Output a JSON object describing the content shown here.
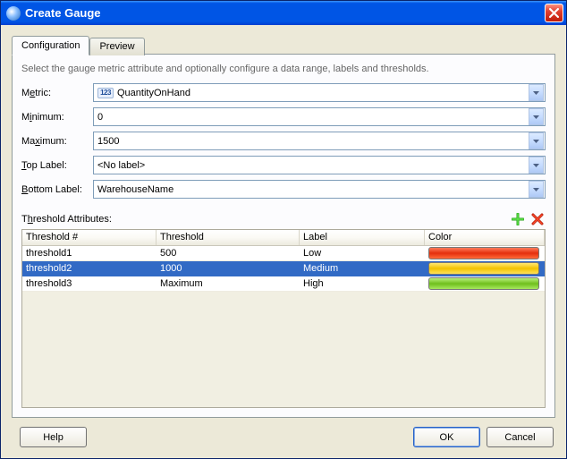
{
  "window": {
    "title": "Create Gauge"
  },
  "tabs": {
    "configuration": "Configuration",
    "preview": "Preview",
    "active": "configuration"
  },
  "hint": "Select the gauge metric attribute and optionally configure a data range, labels and thresholds.",
  "form": {
    "metric": {
      "label_pre": "M",
      "label_ul": "e",
      "label_post": "tric:",
      "badge": "123",
      "value": "QuantityOnHand"
    },
    "minimum": {
      "label_pre": "M",
      "label_ul": "i",
      "label_post": "nimum:",
      "value": "0"
    },
    "maximum": {
      "label_pre": "Ma",
      "label_ul": "x",
      "label_post": "imum:",
      "value": "1500"
    },
    "top_label": {
      "label_pre": "",
      "label_ul": "T",
      "label_post": "op Label:",
      "value": "<No label>"
    },
    "bottom_label": {
      "label_pre": "",
      "label_ul": "B",
      "label_post": "ottom Label:",
      "value": "WarehouseName"
    }
  },
  "thresholds": {
    "section_pre": "T",
    "section_ul": "h",
    "section_post": "reshold Attributes:",
    "columns": {
      "num": "Threshold #",
      "threshold": "Threshold",
      "label": "Label",
      "color": "Color"
    },
    "rows": [
      {
        "num": "threshold1",
        "threshold": "500",
        "label": "Low",
        "color": "red",
        "selected": false
      },
      {
        "num": "threshold2",
        "threshold": "1000",
        "label": "Medium",
        "color": "yellow",
        "selected": true
      },
      {
        "num": "threshold3",
        "threshold": "Maximum",
        "label": "High",
        "color": "green",
        "selected": false
      }
    ],
    "swatch_colors": {
      "red": [
        "#ff7b5a",
        "#e42f0d",
        "#ff6a3a"
      ],
      "yellow": [
        "#ffe873",
        "#f2c200",
        "#ffe25a"
      ],
      "green": [
        "#b9f07a",
        "#6fbf1d",
        "#a7e85e"
      ]
    }
  },
  "buttons": {
    "help": "Help",
    "ok": "OK",
    "cancel": "Cancel"
  },
  "colors": {
    "titlebar_gradient": [
      "#3a95ff",
      "#0055e5",
      "#003fd0"
    ],
    "selection": "#316ac5",
    "panel_bg": "#fcfcfe",
    "dialog_bg": "#ece9d8",
    "combo_border": "#7f9db9"
  }
}
